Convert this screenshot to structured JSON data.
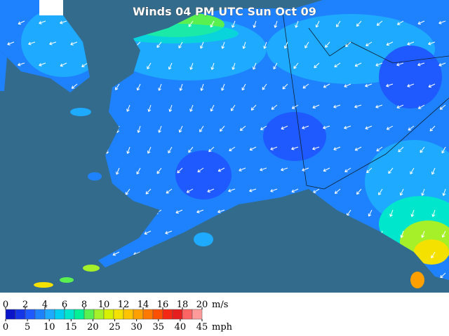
{
  "title": "Winds 04 PM UTC Sun Oct 09",
  "legend": {
    "colors": [
      "#0a14c8",
      "#1436e6",
      "#1e5aff",
      "#1e82ff",
      "#1eaaff",
      "#00cdf0",
      "#00e6cd",
      "#00f096",
      "#5af050",
      "#a5f028",
      "#d7f000",
      "#f5e100",
      "#ffc300",
      "#ffa000",
      "#ff7800",
      "#ff5000",
      "#f52814",
      "#e61e1e",
      "#ff6464",
      "#ff9b9b"
    ],
    "ms_ticks": [
      0,
      2,
      4,
      6,
      8,
      10,
      12,
      14,
      16,
      18,
      20
    ],
    "ms_range": [
      0,
      20
    ],
    "ms_unit": "m/s",
    "mph_ticks": [
      0,
      5,
      10,
      15,
      20,
      25,
      30,
      35,
      40,
      45
    ],
    "mph_range": [
      0,
      45
    ],
    "mph_unit": "mph"
  }
}
